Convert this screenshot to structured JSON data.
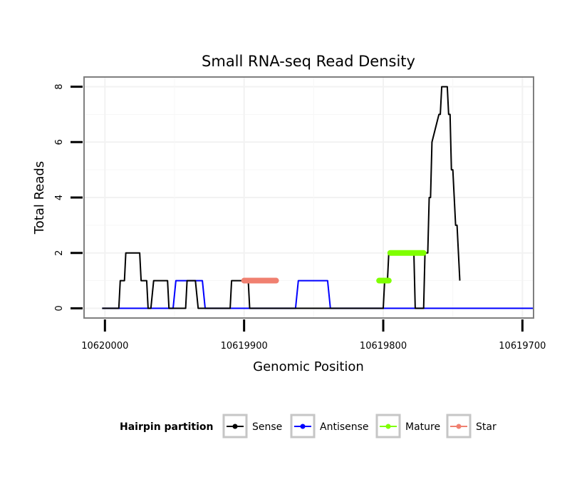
{
  "chart_data": {
    "type": "line",
    "title": "Small RNA-seq Read Density",
    "xlabel": "Genomic Position",
    "ylabel": "Total Reads",
    "xlim": [
      10620015,
      10619692
    ],
    "x_reversed": true,
    "ylim": [
      -0.35,
      8.35
    ],
    "xticks": [
      10620000,
      10619900,
      10619800,
      10619700
    ],
    "xtick_labels": [
      "10620000",
      "10619900",
      "10619800",
      "10619700"
    ],
    "yticks": [
      0,
      2,
      4,
      6,
      8
    ],
    "ytick_labels": [
      "0",
      "2",
      "4",
      "6",
      "8"
    ],
    "grid": true,
    "legend": {
      "title": "Hairpin partition",
      "position": "bottom",
      "entries": [
        {
          "name": "Sense",
          "color": "#000000"
        },
        {
          "name": "Antisense",
          "color": "#0000ff"
        },
        {
          "name": "Mature",
          "color": "#7fff00"
        },
        {
          "name": "Star",
          "color": "#f08070"
        }
      ]
    },
    "series": [
      {
        "name": "Sense",
        "color": "#000000",
        "x": [
          10620002,
          10619990,
          10619989,
          10619986,
          10619985,
          10619975,
          10619974,
          10619970,
          10619969,
          10619967,
          10619965,
          10619955,
          10619954,
          10619942,
          10619941,
          10619935,
          10619933,
          10619910,
          10619909,
          10619897,
          10619896,
          10619800,
          10619799,
          10619797,
          10619796,
          10619793,
          10619792,
          10619778,
          10619777,
          10619774,
          10619773,
          10619771,
          10619770,
          10619768,
          10619767,
          10619766,
          10619765,
          10619760,
          10619759,
          10619758,
          10619757,
          10619755,
          10619754,
          10619753,
          10619752,
          10619751,
          10619750,
          10619748,
          10619747,
          10619745
        ],
        "y": [
          0,
          0,
          1,
          1,
          2,
          2,
          1,
          1,
          0,
          0,
          1,
          1,
          0,
          0,
          1,
          1,
          0,
          0,
          1,
          1,
          0,
          0,
          1,
          1,
          2,
          2,
          2,
          2,
          0,
          0,
          0,
          0,
          2,
          2,
          4,
          4,
          6,
          7,
          7,
          8,
          8,
          8,
          8,
          7,
          7,
          5,
          5,
          3,
          3,
          1
        ]
      },
      {
        "name": "Antisense",
        "color": "#0000ff",
        "x": [
          10620002,
          10619951,
          10619949,
          10619930,
          10619928,
          10619863,
          10619861,
          10619840,
          10619838,
          10619692
        ],
        "y": [
          0,
          0,
          1,
          1,
          0,
          0,
          1,
          1,
          0,
          0
        ]
      },
      {
        "name": "Mature",
        "color": "#7fff00",
        "segments": [
          {
            "x": [
              10619803,
              10619796
            ],
            "y": [
              1,
              1
            ]
          },
          {
            "x": [
              10619795,
              10619771
            ],
            "y": [
              2,
              2
            ]
          }
        ]
      },
      {
        "name": "Star",
        "color": "#f08070",
        "segments": [
          {
            "x": [
              10619900,
              10619877
            ],
            "y": [
              1,
              1
            ]
          }
        ]
      }
    ]
  }
}
